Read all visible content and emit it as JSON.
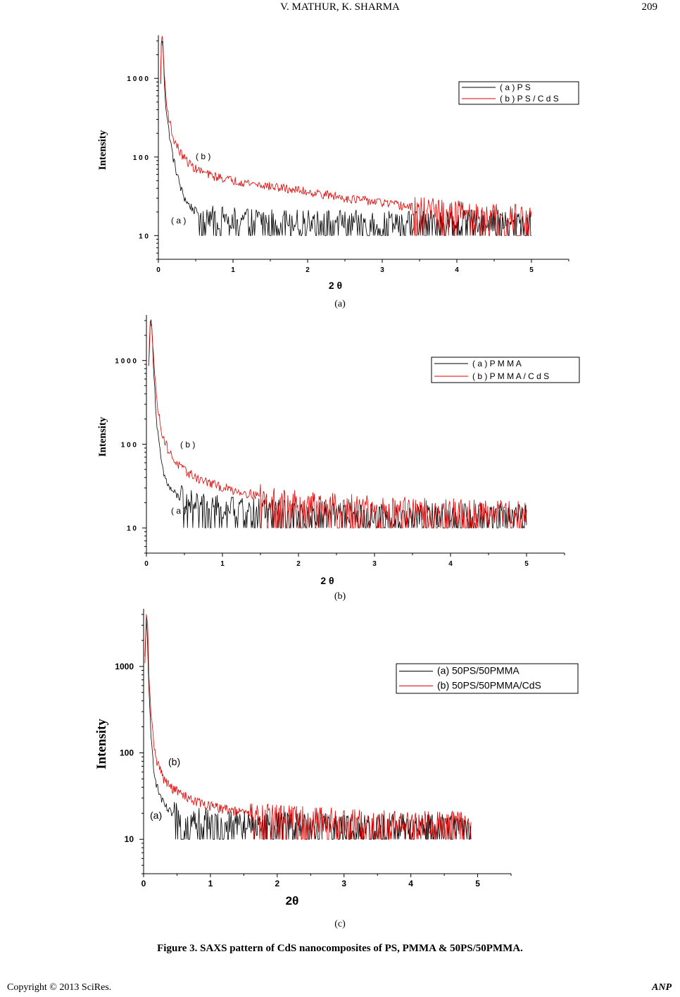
{
  "header": {
    "running_head": "V. MATHUR, K. SHARMA",
    "page_number": "209"
  },
  "charts": [
    {
      "panel_label": "(a)",
      "chart_data": {
        "type": "line",
        "xlabel": "2 θ",
        "ylabel": "Intensity",
        "y_scale": "log",
        "xlim": [
          0,
          5.5
        ],
        "ylim": [
          5,
          3000
        ],
        "x_ticks": [
          "0",
          "1",
          "2",
          "3",
          "4",
          "5"
        ],
        "y_ticks": [
          {
            "value": 10,
            "label": "1 0"
          },
          {
            "value": 100,
            "label": "1 0 0"
          },
          {
            "value": 1000,
            "label": "1 0 0 0"
          }
        ],
        "legend": {
          "placement": "top-right"
        },
        "series": [
          {
            "name": "( a )  P S",
            "color": "#000000",
            "curve_label": "( a )",
            "points": [
              [
                0.03,
                800
              ],
              [
                0.04,
                3000
              ],
              [
                0.06,
                2600
              ],
              [
                0.08,
                900
              ],
              [
                0.1,
                450
              ],
              [
                0.13,
                250
              ],
              [
                0.17,
                140
              ],
              [
                0.2,
                95
              ],
              [
                0.25,
                60
              ],
              [
                0.3,
                40
              ],
              [
                0.35,
                30
              ],
              [
                0.4,
                25
              ],
              [
                0.5,
                20
              ],
              [
                0.7,
                17
              ],
              [
                1.0,
                16
              ],
              [
                2.0,
                15
              ],
              [
                3.0,
                15
              ],
              [
                4.0,
                15
              ],
              [
                5.0,
                15
              ]
            ],
            "floor": 10,
            "noise_start": 0.55
          },
          {
            "name": "( b )  P S / C d S",
            "color": "#e00000",
            "curve_label": "( b )",
            "points": [
              [
                0.03,
                900
              ],
              [
                0.04,
                3200
              ],
              [
                0.06,
                2900
              ],
              [
                0.08,
                1100
              ],
              [
                0.1,
                600
              ],
              [
                0.13,
                350
              ],
              [
                0.17,
                230
              ],
              [
                0.2,
                170
              ],
              [
                0.3,
                110
              ],
              [
                0.4,
                85
              ],
              [
                0.5,
                70
              ],
              [
                0.7,
                58
              ],
              [
                1.0,
                50
              ],
              [
                1.5,
                42
              ],
              [
                2.0,
                36
              ],
              [
                2.5,
                30
              ],
              [
                3.0,
                26
              ],
              [
                3.5,
                22
              ],
              [
                4.0,
                20
              ],
              [
                4.5,
                18
              ],
              [
                5.0,
                18
              ]
            ],
            "floor": 10,
            "noise_start": 3.4
          }
        ]
      }
    },
    {
      "panel_label": "(b)",
      "chart_data": {
        "type": "line",
        "xlabel": "2 θ",
        "ylabel": "Intensity",
        "y_scale": "log",
        "xlim": [
          0,
          5.5
        ],
        "ylim": [
          5,
          3000
        ],
        "x_ticks": [
          "0",
          "1",
          "2",
          "3",
          "4",
          "5"
        ],
        "y_ticks": [
          {
            "value": 10,
            "label": "1 0"
          },
          {
            "value": 100,
            "label": "1 0 0"
          },
          {
            "value": 1000,
            "label": "1 0 0 0"
          }
        ],
        "legend": {
          "placement": "top-right"
        },
        "series": [
          {
            "name": "( a )  P M M A",
            "color": "#000000",
            "curve_label": "( a )",
            "points": [
              [
                0.03,
                800
              ],
              [
                0.05,
                3000
              ],
              [
                0.07,
                2500
              ],
              [
                0.1,
                700
              ],
              [
                0.13,
                200
              ],
              [
                0.17,
                90
              ],
              [
                0.22,
                45
              ],
              [
                0.3,
                30
              ],
              [
                0.4,
                24
              ],
              [
                0.6,
                20
              ],
              [
                0.8,
                18
              ],
              [
                1.0,
                17
              ],
              [
                2.0,
                15
              ],
              [
                3.0,
                14
              ],
              [
                4.0,
                14
              ],
              [
                5.0,
                14
              ]
            ],
            "floor": 10,
            "noise_start": 0.45
          },
          {
            "name": "( b )  P M M A / C d S",
            "color": "#e00000",
            "curve_label": "( b )",
            "points": [
              [
                0.03,
                800
              ],
              [
                0.05,
                3000
              ],
              [
                0.07,
                2800
              ],
              [
                0.1,
                900
              ],
              [
                0.13,
                380
              ],
              [
                0.17,
                200
              ],
              [
                0.22,
                120
              ],
              [
                0.3,
                80
              ],
              [
                0.4,
                58
              ],
              [
                0.5,
                48
              ],
              [
                0.7,
                38
              ],
              [
                1.0,
                30
              ],
              [
                1.5,
                24
              ],
              [
                2.0,
                20
              ],
              [
                3.0,
                17
              ],
              [
                4.0,
                16
              ],
              [
                5.0,
                15
              ]
            ],
            "floor": 10,
            "noise_start": 1.5
          }
        ]
      }
    },
    {
      "panel_label": "(c)",
      "chart_data": {
        "type": "line",
        "xlabel": "2θ",
        "ylabel": "Intensity",
        "y_scale": "log",
        "xlim": [
          0,
          5.5
        ],
        "ylim": [
          4,
          4000
        ],
        "x_ticks": [
          "0",
          "1",
          "2",
          "3",
          "4",
          "5"
        ],
        "y_ticks": [
          {
            "value": 10,
            "label": "10"
          },
          {
            "value": 100,
            "label": "100"
          },
          {
            "value": 1000,
            "label": "1000"
          }
        ],
        "legend": {
          "placement": "top-right"
        },
        "series": [
          {
            "name": "(a) 50PS/50PMMA",
            "color": "#000000",
            "curve_label": "(a)",
            "points": [
              [
                0.02,
                1200
              ],
              [
                0.04,
                3500
              ],
              [
                0.06,
                2000
              ],
              [
                0.08,
                500
              ],
              [
                0.11,
                150
              ],
              [
                0.15,
                70
              ],
              [
                0.2,
                40
              ],
              [
                0.3,
                25
              ],
              [
                0.4,
                20
              ],
              [
                0.6,
                17
              ],
              [
                1.0,
                16
              ],
              [
                2.0,
                15
              ],
              [
                3.0,
                14
              ],
              [
                4.0,
                14
              ],
              [
                4.9,
                14
              ]
            ],
            "floor": 10,
            "noise_start": 0.45
          },
          {
            "name": "(b) 50PS/50PMMA/CdS",
            "color": "#e00000",
            "curve_label": "(b)",
            "points": [
              [
                0.02,
                1000
              ],
              [
                0.04,
                3700
              ],
              [
                0.06,
                3000
              ],
              [
                0.08,
                800
              ],
              [
                0.11,
                280
              ],
              [
                0.15,
                130
              ],
              [
                0.2,
                80
              ],
              [
                0.3,
                50
              ],
              [
                0.4,
                40
              ],
              [
                0.6,
                32
              ],
              [
                0.8,
                27
              ],
              [
                1.0,
                24
              ],
              [
                1.5,
                20
              ],
              [
                2.0,
                18
              ],
              [
                3.0,
                16
              ],
              [
                4.0,
                15
              ],
              [
                4.9,
                15
              ]
            ],
            "floor": 10,
            "noise_start": 1.6
          }
        ]
      }
    }
  ],
  "caption": "Figure 3. SAXS pattern of CdS nanocomposites of PS, PMMA & 50PS/50PMMA.",
  "footer": {
    "copyright": "Copyright © 2013 SciRes.",
    "journal": "ANP"
  }
}
